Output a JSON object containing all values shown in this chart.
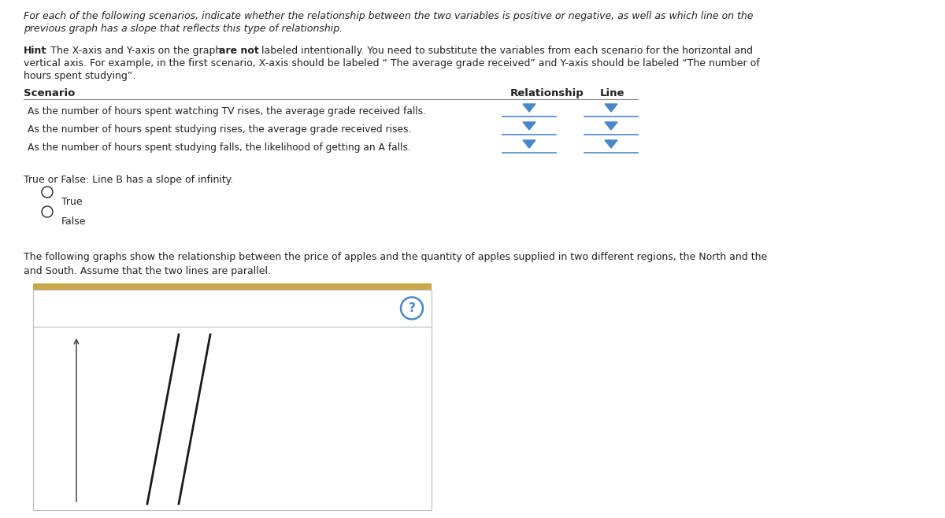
{
  "bg_color": "#ffffff",
  "title_italic1": "For each of the following scenarios, indicate whether the relationship between the two variables is positive or negative, as well as which line on the",
  "title_italic2": "previous graph has a slope that reflects this type of relationship.",
  "hint_bold": "Hint",
  "hint_part1": ": The X-axis and Y-axis on the graph ",
  "hint_are_not": "are not",
  "hint_part2": " labeled intentionally. You need to substitute the variables from each scenario for the horizontal and",
  "hint_line2": "vertical axis. For example, in the first scenario, X-axis should be labeled “ The average grade received” and Y-axis should be labeled “The number of",
  "hint_line3": "hours spent studying”.",
  "col_scenario": "Scenario",
  "col_relationship": "Relationship",
  "col_line": "Line",
  "scenarios": [
    "As the number of hours spent watching TV rises, the average grade received falls.",
    "As the number of hours spent studying rises, the average grade received rises.",
    "As the number of hours spent studying falls, the likelihood of getting an A falls."
  ],
  "tf_question": "True or False: Line B has a slope of infinity.",
  "radio_true": "True",
  "radio_false": "False",
  "bottom_line1": "The following graphs show the relationship between the price of apples and the quantity of apples supplied in two different regions, the North and the",
  "bottom_line2": "and South. Assume that the two lines are parallel.",
  "text_color": "#222222",
  "dropdown_color": "#4a86c8",
  "table_rule_color": "#888888",
  "gold_bar_color": "#c8a84b",
  "box_border_color": "#bbbbbb",
  "axis_color": "#333333",
  "graph_line_color": "#1a1a1a"
}
